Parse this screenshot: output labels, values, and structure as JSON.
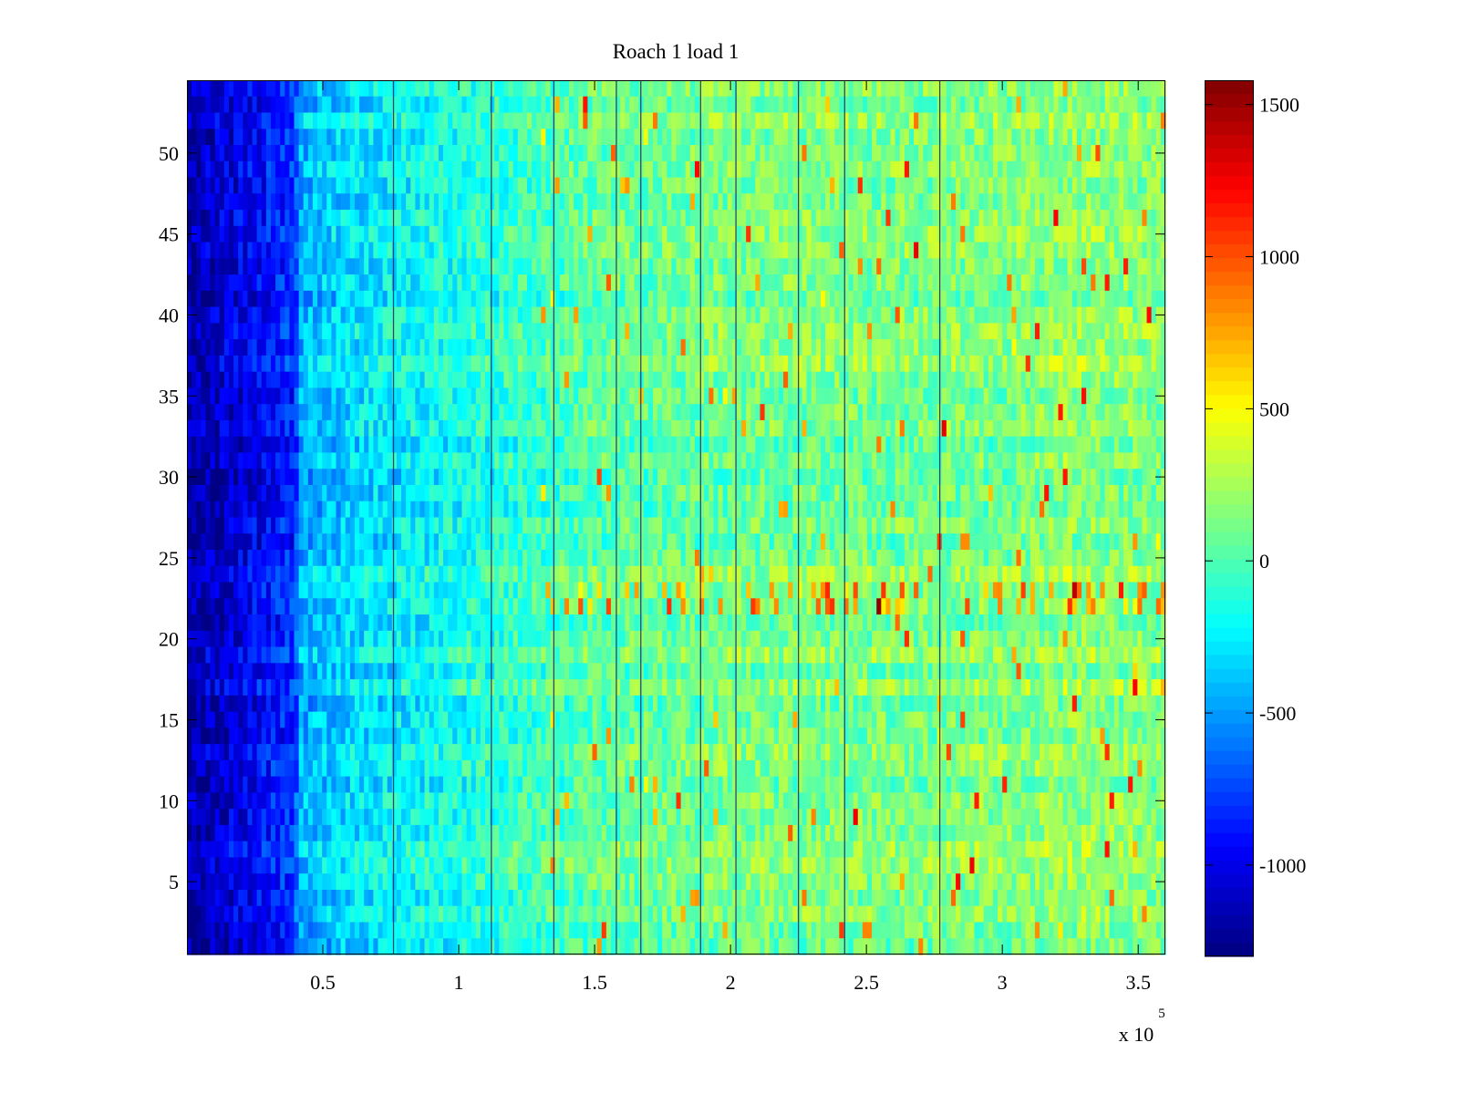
{
  "chart_data": {
    "type": "heatmap",
    "title": "Roach 1 load 1",
    "xlabel": "",
    "ylabel": "",
    "x_exponent_label": "x 10",
    "x_exponent_power": "5",
    "x_scale": 100000,
    "xlim": [
      0,
      3.6
    ],
    "ylim": [
      0.5,
      54.5
    ],
    "rows": 54,
    "x_ticks": [
      0.5,
      1,
      1.5,
      2,
      2.5,
      3,
      3.5
    ],
    "x_tick_labels": [
      "0.5",
      "1",
      "1.5",
      "2",
      "2.5",
      "3",
      "3.5"
    ],
    "y_ticks": [
      5,
      10,
      15,
      20,
      25,
      30,
      35,
      40,
      45,
      50
    ],
    "y_tick_labels": [
      "5",
      "10",
      "15",
      "20",
      "25",
      "30",
      "35",
      "40",
      "45",
      "50"
    ],
    "colorbar": {
      "colormap": "jet",
      "clim": [
        -1300,
        1580
      ],
      "ticks": [
        -1000,
        -500,
        0,
        500,
        1000,
        1500
      ],
      "tick_labels": [
        "-1000",
        "-500",
        "0",
        "500",
        "1000",
        "1500"
      ]
    },
    "value_trend": {
      "x": [
        0,
        0.2,
        0.4,
        0.41,
        0.6,
        1.0,
        1.5,
        2.0,
        2.5,
        3.0,
        3.3,
        3.6
      ],
      "value": [
        -1200,
        -1000,
        -800,
        -450,
        -300,
        -150,
        50,
        120,
        130,
        140,
        200,
        150
      ]
    },
    "dark_vertical_streaks_x": [
      0.76,
      1.12,
      1.35,
      1.58,
      1.67,
      1.89,
      2.02,
      2.25,
      2.42,
      2.77
    ],
    "notable_rows": [
      22,
      23
    ]
  }
}
